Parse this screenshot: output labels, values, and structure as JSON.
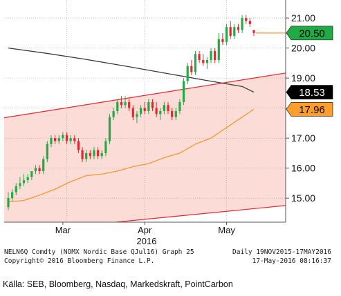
{
  "chart_data": {
    "type": "candlestick",
    "x_labels": [
      "Mar",
      "Apr",
      "May"
    ],
    "year_label": "2016",
    "y_ticks": [
      15.0,
      16.0,
      17.0,
      18.0,
      19.0,
      20.0,
      21.0
    ],
    "y_tick_labels": [
      "15.00",
      "16.00",
      "17.00",
      "18.00",
      "19.00",
      "20.00",
      "21.00"
    ],
    "ylim": [
      14.2,
      21.6
    ],
    "grid": "dotted",
    "value_tags": [
      {
        "label": "20.50",
        "value": 20.5,
        "color": "#22aa44",
        "text_color": "#000000"
      },
      {
        "label": "18.53",
        "value": 18.53,
        "color": "#000000",
        "text_color": "#ffffff"
      },
      {
        "label": "17.96",
        "value": 17.96,
        "color": "#ff9e2c",
        "text_color": "#000000"
      }
    ],
    "up_color": "#22aa44",
    "down_color": "#e8252c",
    "candles": [
      [
        14.7,
        15.2,
        14.6,
        15.0
      ],
      [
        15.0,
        15.3,
        14.9,
        15.2
      ],
      [
        15.2,
        15.5,
        15.1,
        15.4
      ],
      [
        15.4,
        15.7,
        15.3,
        15.5
      ],
      [
        15.5,
        15.8,
        15.4,
        15.6
      ],
      [
        15.6,
        15.8,
        15.5,
        15.7
      ],
      [
        15.7,
        15.9,
        15.6,
        15.9
      ],
      [
        15.9,
        16.1,
        15.8,
        16.0
      ],
      [
        16.0,
        16.1,
        15.8,
        15.9
      ],
      [
        15.9,
        16.4,
        15.8,
        16.3
      ],
      [
        16.3,
        16.9,
        16.2,
        16.8
      ],
      [
        16.8,
        17.1,
        16.7,
        17.0
      ],
      [
        17.0,
        17.1,
        16.8,
        16.9
      ],
      [
        16.9,
        17.1,
        16.8,
        17.0
      ],
      [
        17.0,
        17.2,
        16.9,
        17.1
      ],
      [
        17.1,
        17.2,
        16.8,
        16.9
      ],
      [
        16.9,
        17.1,
        16.8,
        17.0
      ],
      [
        17.0,
        17.1,
        16.8,
        16.9
      ],
      [
        16.9,
        17.0,
        16.5,
        16.6
      ],
      [
        16.6,
        16.7,
        16.2,
        16.3
      ],
      [
        16.3,
        16.6,
        16.2,
        16.5
      ],
      [
        16.5,
        16.6,
        16.3,
        16.4
      ],
      [
        16.4,
        16.7,
        16.3,
        16.6
      ],
      [
        16.6,
        16.7,
        16.3,
        16.4
      ],
      [
        16.4,
        16.6,
        16.3,
        16.5
      ],
      [
        16.5,
        17.0,
        16.4,
        16.9
      ],
      [
        16.9,
        17.8,
        16.8,
        17.7
      ],
      [
        17.7,
        18.0,
        17.6,
        17.9
      ],
      [
        17.9,
        18.3,
        17.8,
        18.2
      ],
      [
        18.2,
        18.4,
        18.0,
        18.1
      ],
      [
        18.1,
        18.4,
        18.0,
        18.2
      ],
      [
        18.2,
        18.3,
        17.9,
        18.0
      ],
      [
        18.0,
        18.1,
        17.6,
        17.7
      ],
      [
        17.7,
        17.9,
        17.5,
        17.8
      ],
      [
        17.8,
        18.1,
        17.7,
        18.0
      ],
      [
        18.0,
        18.2,
        17.8,
        17.9
      ],
      [
        17.9,
        18.3,
        17.8,
        18.2
      ],
      [
        18.2,
        18.3,
        17.9,
        18.0
      ],
      [
        18.0,
        18.2,
        17.7,
        17.8
      ],
      [
        17.8,
        18.0,
        17.6,
        17.9
      ],
      [
        17.9,
        18.2,
        17.8,
        18.1
      ],
      [
        18.1,
        18.2,
        17.8,
        17.9
      ],
      [
        17.9,
        18.0,
        17.6,
        17.7
      ],
      [
        17.7,
        18.0,
        17.6,
        17.9
      ],
      [
        17.9,
        18.3,
        17.8,
        18.2
      ],
      [
        18.2,
        19.0,
        18.1,
        18.9
      ],
      [
        18.9,
        19.5,
        18.8,
        19.4
      ],
      [
        19.4,
        19.6,
        19.1,
        19.2
      ],
      [
        19.2,
        19.9,
        19.1,
        19.8
      ],
      [
        19.8,
        19.9,
        19.5,
        19.6
      ],
      [
        19.6,
        19.8,
        19.4,
        19.5
      ],
      [
        19.5,
        19.7,
        19.3,
        19.6
      ],
      [
        19.6,
        20.0,
        19.5,
        19.9
      ],
      [
        19.9,
        20.0,
        19.5,
        19.6
      ],
      [
        19.6,
        20.5,
        19.5,
        20.3
      ],
      [
        20.3,
        20.5,
        20.1,
        20.2
      ],
      [
        20.2,
        20.8,
        20.1,
        20.7
      ],
      [
        20.7,
        20.9,
        20.3,
        20.4
      ],
      [
        20.4,
        20.8,
        20.3,
        20.7
      ],
      [
        20.7,
        20.8,
        20.5,
        20.6
      ],
      [
        20.6,
        21.1,
        20.5,
        21.0
      ],
      [
        21.0,
        21.1,
        20.8,
        20.9
      ],
      [
        20.9,
        21.0,
        20.7,
        20.8
      ],
      [
        20.6,
        20.6,
        20.4,
        20.5
      ]
    ],
    "moving_average_long": [
      [
        0,
        20.0
      ],
      [
        10,
        19.82
      ],
      [
        20,
        19.62
      ],
      [
        30,
        19.4
      ],
      [
        40,
        19.17
      ],
      [
        50,
        18.94
      ],
      [
        60,
        18.72
      ],
      [
        63,
        18.53
      ]
    ],
    "moving_average_short": [
      [
        0,
        14.88
      ],
      [
        4,
        14.92
      ],
      [
        8,
        15.1
      ],
      [
        12,
        15.3
      ],
      [
        16,
        15.55
      ],
      [
        20,
        15.75
      ],
      [
        24,
        15.8
      ],
      [
        28,
        15.9
      ],
      [
        32,
        16.05
      ],
      [
        36,
        16.15
      ],
      [
        40,
        16.35
      ],
      [
        44,
        16.5
      ],
      [
        48,
        16.8
      ],
      [
        52,
        17.0
      ],
      [
        56,
        17.35
      ],
      [
        60,
        17.7
      ],
      [
        63,
        17.96
      ]
    ],
    "channel_upper": [
      [
        0,
        17.7
      ],
      [
        63,
        19.0
      ]
    ],
    "channel_lower": [
      [
        0,
        13.85
      ],
      [
        63,
        14.65
      ]
    ],
    "current_line_value": 20.5
  },
  "footer": {
    "line1_left": "NELN6Q Comdty (NOMX Nordic Base QJul16) Graph 25",
    "line1_right": "Daily 19NOV2015-17MAY2016",
    "line2_left": "Copyright© 2016 Bloomberg Finance L.P.",
    "line2_right": "17-May-2016 08:16:37"
  },
  "source": "Källa: SEB, Bloomberg, Nasdaq, Markedskraft, PointCarbon"
}
